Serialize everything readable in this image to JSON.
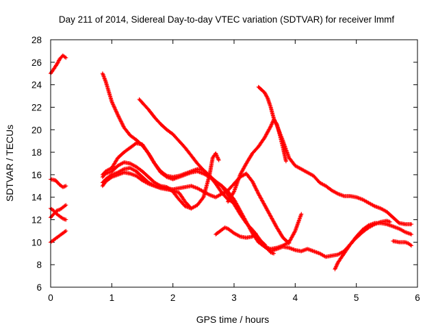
{
  "chart_data": {
    "type": "scatter",
    "title": "Day 211 of 2014, Sidereal Day-to-day VTEC variation (SDTVAR) for receiver lmmf",
    "xlabel": "GPS time / hours",
    "ylabel": "SDTVAR / TECUs",
    "xlim": [
      0,
      6
    ],
    "ylim": [
      6,
      28
    ],
    "xticks": [
      0,
      1,
      2,
      3,
      4,
      5,
      6
    ],
    "yticks": [
      6,
      8,
      10,
      12,
      14,
      16,
      18,
      20,
      22,
      24,
      26,
      28
    ],
    "grid": false,
    "marker": "+",
    "color": "#ff0000",
    "series": [
      {
        "name": "s1",
        "points": [
          [
            0.0,
            25.0
          ],
          [
            0.05,
            25.4
          ],
          [
            0.1,
            25.8
          ],
          [
            0.15,
            26.3
          ],
          [
            0.2,
            26.6
          ],
          [
            0.25,
            26.4
          ]
        ]
      },
      {
        "name": "s2",
        "points": [
          [
            0.0,
            15.6
          ],
          [
            0.08,
            15.5
          ],
          [
            0.15,
            15.1
          ],
          [
            0.2,
            14.9
          ],
          [
            0.25,
            15.0
          ]
        ]
      },
      {
        "name": "s3",
        "points": [
          [
            0.0,
            13.0
          ],
          [
            0.05,
            12.8
          ],
          [
            0.1,
            12.5
          ],
          [
            0.15,
            12.3
          ],
          [
            0.2,
            12.1
          ],
          [
            0.25,
            12.0
          ]
        ]
      },
      {
        "name": "s4",
        "points": [
          [
            0.0,
            12.2
          ],
          [
            0.05,
            12.5
          ],
          [
            0.1,
            12.8
          ],
          [
            0.15,
            12.9
          ],
          [
            0.2,
            13.1
          ],
          [
            0.25,
            13.3
          ]
        ]
      },
      {
        "name": "s5",
        "points": [
          [
            0.0,
            10.0
          ],
          [
            0.05,
            10.2
          ],
          [
            0.1,
            10.4
          ],
          [
            0.15,
            10.6
          ],
          [
            0.2,
            10.8
          ],
          [
            0.25,
            11.0
          ]
        ]
      },
      {
        "name": "s6",
        "points": [
          [
            0.85,
            25.0
          ],
          [
            0.9,
            24.3
          ],
          [
            1.0,
            22.5
          ],
          [
            1.1,
            21.3
          ],
          [
            1.2,
            20.2
          ],
          [
            1.3,
            19.5
          ],
          [
            1.4,
            19.1
          ],
          [
            1.5,
            18.6
          ],
          [
            1.6,
            17.9
          ],
          [
            1.7,
            17.0
          ],
          [
            1.8,
            16.2
          ],
          [
            1.9,
            15.8
          ],
          [
            2.0,
            15.6
          ],
          [
            2.1,
            15.8
          ],
          [
            2.2,
            16.0
          ],
          [
            2.3,
            16.2
          ],
          [
            2.4,
            16.3
          ],
          [
            2.5,
            16.1
          ],
          [
            2.6,
            15.8
          ],
          [
            2.7,
            15.4
          ],
          [
            2.8,
            15.0
          ],
          [
            2.9,
            14.5
          ],
          [
            3.0,
            13.8
          ],
          [
            3.1,
            12.8
          ],
          [
            3.2,
            11.8
          ],
          [
            3.3,
            10.8
          ],
          [
            3.4,
            10.0
          ],
          [
            3.5,
            9.6
          ],
          [
            3.6,
            9.4
          ],
          [
            3.7,
            9.5
          ],
          [
            3.8,
            9.7
          ],
          [
            3.9,
            10.0
          ],
          [
            4.0,
            11.0
          ],
          [
            4.1,
            12.5
          ]
        ]
      },
      {
        "name": "s7",
        "points": [
          [
            0.85,
            15.3
          ],
          [
            0.9,
            15.6
          ],
          [
            1.0,
            16.0
          ],
          [
            1.1,
            16.2
          ],
          [
            1.2,
            16.5
          ],
          [
            1.3,
            16.6
          ],
          [
            1.4,
            16.3
          ],
          [
            1.5,
            15.8
          ],
          [
            1.6,
            15.3
          ],
          [
            1.7,
            15.0
          ],
          [
            1.8,
            14.9
          ],
          [
            1.9,
            14.8
          ],
          [
            2.0,
            14.7
          ],
          [
            2.1,
            14.8
          ],
          [
            2.2,
            14.9
          ],
          [
            2.3,
            15.0
          ],
          [
            2.4,
            14.8
          ],
          [
            2.5,
            14.5
          ],
          [
            2.6,
            14.2
          ],
          [
            2.7,
            14.0
          ],
          [
            2.8,
            14.3
          ],
          [
            2.9,
            14.6
          ],
          [
            3.0,
            15.2
          ],
          [
            3.1,
            15.8
          ],
          [
            3.2,
            16.1
          ],
          [
            3.3,
            15.4
          ],
          [
            3.4,
            14.3
          ],
          [
            3.5,
            13.3
          ],
          [
            3.6,
            12.3
          ],
          [
            3.7,
            11.3
          ],
          [
            3.8,
            10.4
          ],
          [
            3.9,
            9.9
          ]
        ]
      },
      {
        "name": "s8",
        "points": [
          [
            0.85,
            15.0
          ],
          [
            0.9,
            15.4
          ],
          [
            1.0,
            15.8
          ],
          [
            1.1,
            16.0
          ],
          [
            1.2,
            16.2
          ],
          [
            1.3,
            16.1
          ],
          [
            1.4,
            15.9
          ],
          [
            1.5,
            15.5
          ],
          [
            1.6,
            15.2
          ],
          [
            1.7,
            15.0
          ],
          [
            1.8,
            14.8
          ],
          [
            1.9,
            14.7
          ],
          [
            2.0,
            14.6
          ],
          [
            2.1,
            14.4
          ],
          [
            2.2,
            13.6
          ],
          [
            2.3,
            13.0
          ],
          [
            2.4,
            13.3
          ],
          [
            2.5,
            14.0
          ],
          [
            2.6,
            16.0
          ],
          [
            2.65,
            17.5
          ],
          [
            2.7,
            17.9
          ],
          [
            2.75,
            17.3
          ]
        ]
      },
      {
        "name": "s9",
        "points": [
          [
            0.85,
            16.0
          ],
          [
            0.9,
            16.3
          ],
          [
            1.0,
            16.6
          ],
          [
            1.1,
            17.5
          ],
          [
            1.2,
            18.0
          ],
          [
            1.3,
            18.4
          ],
          [
            1.4,
            18.8
          ],
          [
            1.5,
            18.7
          ],
          [
            1.6,
            17.9
          ],
          [
            1.7,
            17.0
          ],
          [
            1.8,
            16.3
          ],
          [
            1.9,
            15.9
          ],
          [
            2.0,
            15.8
          ],
          [
            2.1,
            15.9
          ],
          [
            2.2,
            16.1
          ],
          [
            2.3,
            16.3
          ],
          [
            2.4,
            16.5
          ],
          [
            2.5,
            16.4
          ],
          [
            2.6,
            15.9
          ],
          [
            2.7,
            15.2
          ],
          [
            2.8,
            14.4
          ],
          [
            2.9,
            13.8
          ],
          [
            3.0,
            13.5
          ]
        ]
      },
      {
        "name": "s10",
        "points": [
          [
            0.85,
            15.8
          ],
          [
            0.9,
            16.1
          ],
          [
            1.0,
            16.3
          ],
          [
            1.1,
            16.8
          ],
          [
            1.2,
            17.1
          ],
          [
            1.3,
            17.0
          ],
          [
            1.4,
            16.7
          ],
          [
            1.5,
            16.3
          ],
          [
            1.6,
            15.8
          ],
          [
            1.7,
            15.3
          ],
          [
            1.8,
            15.0
          ],
          [
            1.9,
            14.9
          ],
          [
            2.0,
            14.5
          ],
          [
            2.1,
            13.8
          ],
          [
            2.2,
            13.2
          ],
          [
            2.3,
            13.0
          ]
        ]
      },
      {
        "name": "s11",
        "points": [
          [
            1.45,
            22.7
          ],
          [
            1.5,
            22.4
          ],
          [
            1.6,
            21.8
          ],
          [
            1.7,
            21.1
          ],
          [
            1.8,
            20.5
          ],
          [
            1.9,
            20.0
          ],
          [
            2.0,
            19.6
          ],
          [
            2.1,
            19.0
          ],
          [
            2.2,
            18.4
          ],
          [
            2.3,
            17.7
          ],
          [
            2.4,
            17.0
          ],
          [
            2.5,
            16.4
          ],
          [
            2.6,
            15.9
          ],
          [
            2.7,
            15.4
          ],
          [
            2.8,
            15.0
          ],
          [
            2.9,
            14.2
          ],
          [
            3.0,
            13.4
          ],
          [
            3.1,
            12.5
          ],
          [
            3.2,
            11.7
          ],
          [
            3.3,
            11.1
          ],
          [
            3.4,
            10.4
          ],
          [
            3.5,
            9.6
          ],
          [
            3.6,
            9.2
          ],
          [
            3.7,
            9.4
          ],
          [
            3.8,
            9.6
          ],
          [
            3.9,
            9.5
          ],
          [
            4.0,
            9.3
          ],
          [
            4.1,
            9.2
          ],
          [
            4.2,
            9.4
          ],
          [
            4.3,
            9.2
          ],
          [
            4.4,
            9.0
          ],
          [
            4.5,
            8.7
          ],
          [
            4.6,
            8.8
          ],
          [
            4.7,
            8.9
          ],
          [
            4.8,
            9.2
          ],
          [
            4.9,
            9.8
          ],
          [
            5.0,
            10.5
          ],
          [
            5.1,
            11.1
          ],
          [
            5.2,
            11.5
          ],
          [
            5.3,
            11.7
          ],
          [
            5.4,
            11.7
          ],
          [
            5.5,
            11.6
          ],
          [
            5.6,
            11.4
          ],
          [
            5.7,
            11.2
          ],
          [
            5.8,
            10.9
          ],
          [
            5.9,
            10.7
          ]
        ]
      },
      {
        "name": "s12",
        "points": [
          [
            2.7,
            10.7
          ],
          [
            2.8,
            11.1
          ],
          [
            2.85,
            11.3
          ],
          [
            2.9,
            11.2
          ],
          [
            3.0,
            10.8
          ],
          [
            3.1,
            10.5
          ],
          [
            3.2,
            10.4
          ],
          [
            3.3,
            10.5
          ],
          [
            3.35,
            10.8
          ],
          [
            3.4,
            10.3
          ],
          [
            3.5,
            9.8
          ],
          [
            3.55,
            9.4
          ],
          [
            3.6,
            9.1
          ],
          [
            3.65,
            9.0
          ]
        ]
      },
      {
        "name": "s13",
        "points": [
          [
            3.4,
            23.8
          ],
          [
            3.5,
            23.3
          ],
          [
            3.55,
            22.8
          ],
          [
            3.6,
            22.0
          ],
          [
            3.65,
            21.0
          ],
          [
            3.7,
            20.4
          ],
          [
            3.8,
            19.0
          ],
          [
            3.9,
            17.5
          ],
          [
            4.0,
            16.8
          ],
          [
            4.1,
            16.5
          ],
          [
            4.2,
            16.2
          ],
          [
            4.3,
            15.9
          ],
          [
            4.4,
            15.3
          ],
          [
            4.5,
            15.0
          ],
          [
            4.6,
            14.6
          ],
          [
            4.7,
            14.3
          ],
          [
            4.8,
            14.1
          ],
          [
            4.9,
            14.1
          ],
          [
            5.0,
            14.0
          ],
          [
            5.1,
            13.8
          ],
          [
            5.2,
            13.5
          ],
          [
            5.3,
            13.2
          ],
          [
            5.4,
            13.0
          ],
          [
            5.5,
            12.7
          ],
          [
            5.6,
            12.2
          ],
          [
            5.7,
            11.7
          ],
          [
            5.8,
            11.6
          ],
          [
            5.9,
            11.6
          ]
        ]
      },
      {
        "name": "s14",
        "points": [
          [
            2.9,
            13.6
          ],
          [
            3.0,
            14.5
          ],
          [
            3.1,
            16.0
          ],
          [
            3.2,
            17.0
          ],
          [
            3.3,
            17.9
          ],
          [
            3.4,
            18.5
          ],
          [
            3.5,
            19.3
          ],
          [
            3.6,
            20.3
          ],
          [
            3.65,
            20.9
          ],
          [
            3.7,
            20.5
          ],
          [
            3.75,
            19.5
          ],
          [
            3.8,
            18.4
          ],
          [
            3.85,
            17.2
          ]
        ]
      },
      {
        "name": "s15",
        "points": [
          [
            4.65,
            7.6
          ],
          [
            4.7,
            8.2
          ],
          [
            4.8,
            9.0
          ],
          [
            4.9,
            9.8
          ],
          [
            5.0,
            10.4
          ],
          [
            5.1,
            10.9
          ],
          [
            5.2,
            11.3
          ],
          [
            5.3,
            11.6
          ],
          [
            5.4,
            11.8
          ],
          [
            5.5,
            11.9
          ],
          [
            5.55,
            11.8
          ]
        ]
      },
      {
        "name": "s16",
        "points": [
          [
            5.6,
            10.1
          ],
          [
            5.7,
            10.0
          ],
          [
            5.8,
            10.0
          ],
          [
            5.85,
            9.9
          ],
          [
            5.9,
            9.7
          ]
        ]
      }
    ]
  }
}
